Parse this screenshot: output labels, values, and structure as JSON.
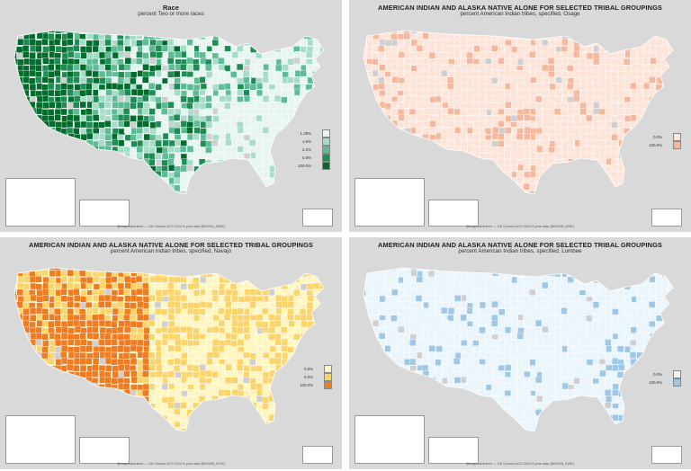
{
  "panels": [
    {
      "title": "Race",
      "subtitle": "percent Two or more races",
      "palette": [
        "#e7f5f1",
        "#a6dcc8",
        "#5dbb95",
        "#1f8c55",
        "#006d2c"
      ],
      "legend_labels": [
        "1.29%",
        "1.6%",
        "2.2%",
        "5.8%",
        "100.0%"
      ],
      "credit": "@mapmakerfeed — US Census ACS 2014 5-year data (B02001_008E)"
    },
    {
      "title": "AMERICAN INDIAN AND ALASKA NATIVE ALONE FOR SELECTED TRIBAL GROUPINGS",
      "subtitle": "percent American Indian tribes, specified, Osage",
      "palette": [
        "#fde4d8",
        "#f7b79c"
      ],
      "legend_labels": [
        "0.0%",
        "100.0%"
      ],
      "credit": "@mapmakerfeed — US Census ACS 2014 5-year data (B02005_025E)"
    },
    {
      "title": "AMERICAN INDIAN AND ALASKA NATIVE ALONE FOR SELECTED TRIBAL GROUPINGS",
      "subtitle": "percent American Indian tribes, specified, Navajo",
      "palette": [
        "#fff6bf",
        "#fbd56b",
        "#f07c22"
      ],
      "legend_labels": [
        "0.0%",
        "0.0%",
        "100.0%"
      ],
      "credit": "@mapmakerfeed — US Census ACS 2014 5-year data (B02005_021E)"
    },
    {
      "title": "AMERICAN INDIAN AND ALASKA NATIVE ALONE FOR SELECTED TRIBAL GROUPINGS",
      "subtitle": "percent American Indian tribes, specified, Lumbee",
      "palette": [
        "#eaf4fb",
        "#9fc7e6"
      ],
      "legend_labels": [
        "0.0%",
        "100.0%"
      ],
      "credit": "@mapmakerfeed — US Census ACS 2014 5-year data (B02005_019E)"
    }
  ],
  "colors": {
    "ocean": "#d9d9d9",
    "no_data": "#cfcfcf",
    "county_border": "#ffffff"
  }
}
